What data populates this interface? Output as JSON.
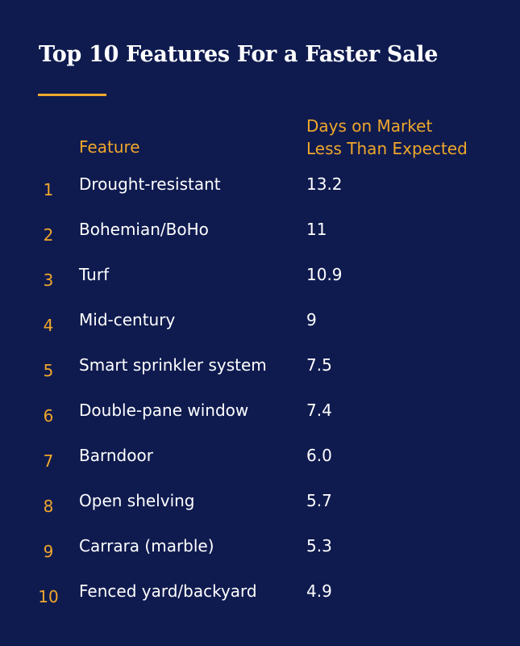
{
  "title": "Top 10 Features For a Faster Sale",
  "columns": {
    "feature": "Feature",
    "days_line1": "Days on Market",
    "days_line2": "Less Than Expected"
  },
  "chart_data": {
    "type": "table",
    "title": "Top 10 Features For a Faster Sale",
    "headers": [
      "Feature",
      "Days on Market Less Than Expected"
    ],
    "rows": [
      {
        "rank": "1",
        "feature": "Drought-resistant",
        "value": "13.2"
      },
      {
        "rank": "2",
        "feature": "Bohemian/BoHo",
        "value": "11"
      },
      {
        "rank": "3",
        "feature": "Turf",
        "value": "10.9"
      },
      {
        "rank": "4",
        "feature": "Mid-century",
        "value": "9"
      },
      {
        "rank": "5",
        "feature": "Smart sprinkler system",
        "value": "7.5"
      },
      {
        "rank": "6",
        "feature": "Double-pane window",
        "value": "7.4"
      },
      {
        "rank": "7",
        "feature": "Barndoor",
        "value": "6.0"
      },
      {
        "rank": "8",
        "feature": "Open shelving",
        "value": "5.7"
      },
      {
        "rank": "9",
        "feature": "Carrara (marble)",
        "value": "5.3"
      },
      {
        "rank": "10",
        "feature": "Fenced yard/backyard",
        "value": "4.9"
      }
    ]
  },
  "colors": {
    "background": "#0f1b4f",
    "accent": "#f0a72b",
    "text": "#ffffff"
  }
}
